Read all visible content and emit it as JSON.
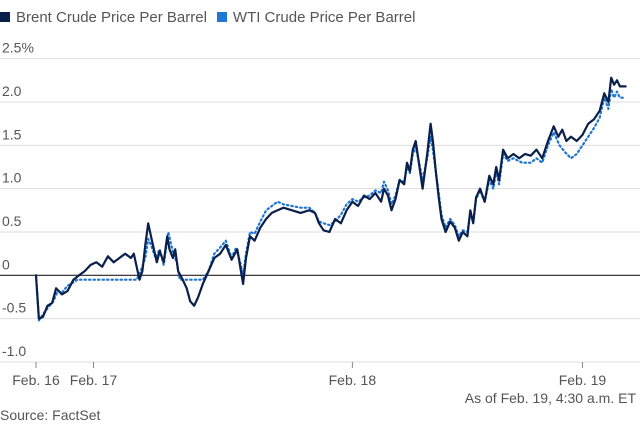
{
  "legend": {
    "brent_label": "Brent Crude Price Per Barrel",
    "wti_label": "WTI Crude Price Per Barrel"
  },
  "colors": {
    "brent": "#0b1f4b",
    "wti": "#1f77d4",
    "grid": "#dddddd",
    "zero": "#222222"
  },
  "footer": {
    "as_of": "As of Feb. 19, 4:30 a.m. ET",
    "source": "Source: FactSet"
  },
  "chart_data": {
    "type": "line",
    "title": "",
    "xlabel": "",
    "ylabel": "",
    "ylim": [
      -1.0,
      2.6
    ],
    "xlim": [
      0,
      10.5
    ],
    "y_ticks": [
      {
        "value": 2.5,
        "label": "2.5%"
      },
      {
        "value": 2.0,
        "label": "2.0"
      },
      {
        "value": 1.5,
        "label": "1.5"
      },
      {
        "value": 1.0,
        "label": "1.0"
      },
      {
        "value": 0.5,
        "label": "0.5"
      },
      {
        "value": 0.0,
        "label": "0"
      },
      {
        "value": -0.5,
        "label": "-0.5"
      },
      {
        "value": -1.0,
        "label": "-1.0"
      }
    ],
    "x_ticks": [
      {
        "value": 0.0,
        "label": "Feb. 16"
      },
      {
        "value": 1.0,
        "label": "Feb. 17"
      },
      {
        "value": 5.5,
        "label": "Feb. 18"
      },
      {
        "value": 9.5,
        "label": "Feb. 19"
      }
    ],
    "grid": true,
    "legend_position": "top-left",
    "series": [
      {
        "name": "Brent Crude Price Per Barrel",
        "style": "solid",
        "points": [
          [
            0.0,
            0.0
          ],
          [
            0.05,
            -0.5
          ],
          [
            0.12,
            -0.48
          ],
          [
            0.2,
            -0.35
          ],
          [
            0.28,
            -0.32
          ],
          [
            0.35,
            -0.15
          ],
          [
            0.45,
            -0.22
          ],
          [
            0.55,
            -0.18
          ],
          [
            0.65,
            -0.05
          ],
          [
            0.75,
            0.0
          ],
          [
            0.85,
            0.05
          ],
          [
            0.95,
            0.12
          ],
          [
            1.05,
            0.15
          ],
          [
            1.15,
            0.1
          ],
          [
            1.25,
            0.22
          ],
          [
            1.35,
            0.15
          ],
          [
            1.45,
            0.2
          ],
          [
            1.55,
            0.25
          ],
          [
            1.65,
            0.2
          ],
          [
            1.7,
            0.25
          ],
          [
            1.8,
            -0.05
          ],
          [
            1.85,
            0.05
          ],
          [
            1.9,
            0.35
          ],
          [
            1.95,
            0.6
          ],
          [
            2.0,
            0.45
          ],
          [
            2.05,
            0.3
          ],
          [
            2.1,
            0.15
          ],
          [
            2.15,
            0.28
          ],
          [
            2.22,
            0.15
          ],
          [
            2.28,
            0.45
          ],
          [
            2.32,
            0.3
          ],
          [
            2.38,
            0.2
          ],
          [
            2.42,
            0.3
          ],
          [
            2.47,
            0.05
          ],
          [
            2.55,
            -0.05
          ],
          [
            2.62,
            -0.15
          ],
          [
            2.68,
            -0.3
          ],
          [
            2.75,
            -0.35
          ],
          [
            2.82,
            -0.25
          ],
          [
            2.9,
            -0.1
          ],
          [
            3.0,
            0.05
          ],
          [
            3.1,
            0.2
          ],
          [
            3.2,
            0.25
          ],
          [
            3.3,
            0.35
          ],
          [
            3.4,
            0.18
          ],
          [
            3.5,
            0.3
          ],
          [
            3.55,
            0.1
          ],
          [
            3.6,
            -0.1
          ],
          [
            3.65,
            0.2
          ],
          [
            3.72,
            0.45
          ],
          [
            3.8,
            0.4
          ],
          [
            3.9,
            0.55
          ],
          [
            4.0,
            0.65
          ],
          [
            4.1,
            0.72
          ],
          [
            4.2,
            0.75
          ],
          [
            4.3,
            0.78
          ],
          [
            4.45,
            0.75
          ],
          [
            4.6,
            0.72
          ],
          [
            4.75,
            0.75
          ],
          [
            4.85,
            0.72
          ],
          [
            4.92,
            0.6
          ],
          [
            5.0,
            0.52
          ],
          [
            5.1,
            0.5
          ],
          [
            5.2,
            0.65
          ],
          [
            5.3,
            0.6
          ],
          [
            5.4,
            0.75
          ],
          [
            5.5,
            0.85
          ],
          [
            5.6,
            0.8
          ],
          [
            5.7,
            0.92
          ],
          [
            5.8,
            0.88
          ],
          [
            5.9,
            0.95
          ],
          [
            6.0,
            0.85
          ],
          [
            6.05,
            1.0
          ],
          [
            6.12,
            0.92
          ],
          [
            6.18,
            0.75
          ],
          [
            6.25,
            0.88
          ],
          [
            6.32,
            1.1
          ],
          [
            6.4,
            1.05
          ],
          [
            6.45,
            1.3
          ],
          [
            6.5,
            1.2
          ],
          [
            6.55,
            1.45
          ],
          [
            6.6,
            1.55
          ],
          [
            6.66,
            1.28
          ],
          [
            6.72,
            1.0
          ],
          [
            6.8,
            1.4
          ],
          [
            6.86,
            1.75
          ],
          [
            6.9,
            1.55
          ],
          [
            6.95,
            1.2
          ],
          [
            7.0,
            0.9
          ],
          [
            7.05,
            0.65
          ],
          [
            7.12,
            0.5
          ],
          [
            7.2,
            0.62
          ],
          [
            7.28,
            0.55
          ],
          [
            7.35,
            0.4
          ],
          [
            7.42,
            0.5
          ],
          [
            7.5,
            0.45
          ],
          [
            7.55,
            0.75
          ],
          [
            7.6,
            0.6
          ],
          [
            7.65,
            0.9
          ],
          [
            7.72,
            1.0
          ],
          [
            7.8,
            0.85
          ],
          [
            7.88,
            1.15
          ],
          [
            7.95,
            1.05
          ],
          [
            8.0,
            1.25
          ],
          [
            8.05,
            1.1
          ],
          [
            8.12,
            1.45
          ],
          [
            8.2,
            1.35
          ],
          [
            8.3,
            1.4
          ],
          [
            8.4,
            1.35
          ],
          [
            8.5,
            1.4
          ],
          [
            8.6,
            1.38
          ],
          [
            8.7,
            1.45
          ],
          [
            8.8,
            1.35
          ],
          [
            8.9,
            1.55
          ],
          [
            9.0,
            1.72
          ],
          [
            9.08,
            1.6
          ],
          [
            9.15,
            1.68
          ],
          [
            9.22,
            1.55
          ],
          [
            9.3,
            1.6
          ],
          [
            9.4,
            1.55
          ],
          [
            9.5,
            1.62
          ],
          [
            9.6,
            1.75
          ],
          [
            9.7,
            1.8
          ],
          [
            9.8,
            1.9
          ],
          [
            9.88,
            2.1
          ],
          [
            9.95,
            2.0
          ],
          [
            10.0,
            2.28
          ],
          [
            10.05,
            2.2
          ],
          [
            10.1,
            2.25
          ],
          [
            10.15,
            2.18
          ],
          [
            10.25,
            2.18
          ]
        ]
      },
      {
        "name": "WTI Crude Price Per Barrel",
        "style": "dotted",
        "points": [
          [
            0.0,
            0.0
          ],
          [
            0.05,
            -0.52
          ],
          [
            0.12,
            -0.45
          ],
          [
            0.2,
            -0.38
          ],
          [
            0.3,
            -0.3
          ],
          [
            0.38,
            -0.18
          ],
          [
            0.45,
            -0.2
          ],
          [
            0.55,
            -0.12
          ],
          [
            0.65,
            -0.08
          ],
          [
            0.72,
            -0.05
          ],
          [
            0.8,
            -0.05
          ],
          [
            1.0,
            -0.05
          ],
          [
            1.2,
            -0.05
          ],
          [
            1.4,
            -0.05
          ],
          [
            1.6,
            -0.05
          ],
          [
            1.75,
            -0.05
          ],
          [
            1.82,
            0.05
          ],
          [
            1.9,
            0.2
          ],
          [
            1.95,
            0.42
          ],
          [
            2.0,
            0.35
          ],
          [
            2.08,
            0.2
          ],
          [
            2.15,
            0.3
          ],
          [
            2.22,
            0.12
          ],
          [
            2.3,
            0.5
          ],
          [
            2.35,
            0.35
          ],
          [
            2.4,
            0.22
          ],
          [
            2.45,
            0.15
          ],
          [
            2.5,
            -0.05
          ],
          [
            2.58,
            -0.05
          ],
          [
            2.68,
            -0.05
          ],
          [
            2.78,
            -0.05
          ],
          [
            2.9,
            -0.05
          ],
          [
            3.0,
            0.05
          ],
          [
            3.1,
            0.25
          ],
          [
            3.2,
            0.32
          ],
          [
            3.3,
            0.4
          ],
          [
            3.4,
            0.2
          ],
          [
            3.48,
            0.32
          ],
          [
            3.55,
            0.15
          ],
          [
            3.6,
            0.0
          ],
          [
            3.65,
            0.25
          ],
          [
            3.72,
            0.5
          ],
          [
            3.8,
            0.48
          ],
          [
            3.9,
            0.62
          ],
          [
            4.0,
            0.75
          ],
          [
            4.1,
            0.8
          ],
          [
            4.2,
            0.85
          ],
          [
            4.3,
            0.82
          ],
          [
            4.45,
            0.8
          ],
          [
            4.6,
            0.78
          ],
          [
            4.75,
            0.78
          ],
          [
            4.85,
            0.72
          ],
          [
            4.92,
            0.62
          ],
          [
            5.0,
            0.6
          ],
          [
            5.1,
            0.58
          ],
          [
            5.2,
            0.62
          ],
          [
            5.3,
            0.7
          ],
          [
            5.4,
            0.82
          ],
          [
            5.5,
            0.88
          ],
          [
            5.6,
            0.85
          ],
          [
            5.7,
            0.9
          ],
          [
            5.8,
            0.92
          ],
          [
            5.9,
            0.98
          ],
          [
            6.0,
            0.95
          ],
          [
            6.05,
            1.08
          ],
          [
            6.12,
            0.98
          ],
          [
            6.18,
            0.82
          ],
          [
            6.25,
            0.92
          ],
          [
            6.32,
            1.1
          ],
          [
            6.4,
            1.08
          ],
          [
            6.45,
            1.25
          ],
          [
            6.5,
            1.18
          ],
          [
            6.55,
            1.4
          ],
          [
            6.6,
            1.48
          ],
          [
            6.66,
            1.3
          ],
          [
            6.72,
            1.1
          ],
          [
            6.8,
            1.35
          ],
          [
            6.86,
            1.6
          ],
          [
            6.9,
            1.45
          ],
          [
            6.95,
            1.2
          ],
          [
            7.0,
            0.95
          ],
          [
            7.05,
            0.7
          ],
          [
            7.12,
            0.55
          ],
          [
            7.2,
            0.65
          ],
          [
            7.28,
            0.58
          ],
          [
            7.35,
            0.45
          ],
          [
            7.42,
            0.52
          ],
          [
            7.5,
            0.5
          ],
          [
            7.55,
            0.72
          ],
          [
            7.6,
            0.62
          ],
          [
            7.65,
            0.88
          ],
          [
            7.72,
            0.98
          ],
          [
            7.8,
            0.85
          ],
          [
            7.88,
            1.1
          ],
          [
            7.95,
            1.0
          ],
          [
            8.0,
            1.2
          ],
          [
            8.05,
            1.05
          ],
          [
            8.12,
            1.4
          ],
          [
            8.2,
            1.32
          ],
          [
            8.3,
            1.35
          ],
          [
            8.45,
            1.3
          ],
          [
            8.6,
            1.3
          ],
          [
            8.7,
            1.35
          ],
          [
            8.8,
            1.3
          ],
          [
            8.9,
            1.5
          ],
          [
            9.0,
            1.65
          ],
          [
            9.1,
            1.5
          ],
          [
            9.2,
            1.42
          ],
          [
            9.3,
            1.35
          ],
          [
            9.4,
            1.4
          ],
          [
            9.5,
            1.5
          ],
          [
            9.6,
            1.6
          ],
          [
            9.7,
            1.7
          ],
          [
            9.8,
            1.82
          ],
          [
            9.88,
            2.05
          ],
          [
            9.95,
            1.92
          ],
          [
            10.0,
            2.15
          ],
          [
            10.05,
            2.05
          ],
          [
            10.1,
            2.12
          ],
          [
            10.15,
            2.05
          ],
          [
            10.25,
            2.05
          ]
        ]
      }
    ]
  }
}
